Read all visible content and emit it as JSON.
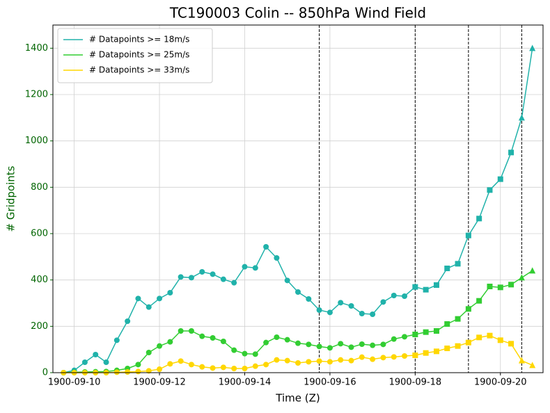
{
  "chart_data": {
    "type": "line",
    "title": "TC190003 Colin -- 850hPa Wind Field",
    "xlabel": "Time (Z)",
    "ylabel": "# Gridpoints",
    "y_axis_color": "#006400",
    "x": [
      "1900-09-09T18:00",
      "1900-09-10T00:00",
      "1900-09-10T06:00",
      "1900-09-10T12:00",
      "1900-09-10T18:00",
      "1900-09-11T00:00",
      "1900-09-11T06:00",
      "1900-09-11T12:00",
      "1900-09-11T18:00",
      "1900-09-12T00:00",
      "1900-09-12T06:00",
      "1900-09-12T12:00",
      "1900-09-12T18:00",
      "1900-09-13T00:00",
      "1900-09-13T06:00",
      "1900-09-13T12:00",
      "1900-09-13T18:00",
      "1900-09-14T00:00",
      "1900-09-14T06:00",
      "1900-09-14T12:00",
      "1900-09-14T18:00",
      "1900-09-15T00:00",
      "1900-09-15T06:00",
      "1900-09-15T12:00",
      "1900-09-15T18:00",
      "1900-09-16T00:00",
      "1900-09-16T06:00",
      "1900-09-16T12:00",
      "1900-09-16T18:00",
      "1900-09-17T00:00",
      "1900-09-17T06:00",
      "1900-09-17T12:00",
      "1900-09-17T18:00",
      "1900-09-18T00:00",
      "1900-09-18T06:00",
      "1900-09-18T12:00",
      "1900-09-18T18:00",
      "1900-09-19T00:00",
      "1900-09-19T06:00",
      "1900-09-19T12:00",
      "1900-09-19T18:00",
      "1900-09-20T00:00",
      "1900-09-20T06:00",
      "1900-09-20T12:00",
      "1900-09-20T18:00"
    ],
    "series": [
      {
        "name": "# Datapoints >= 18m/s",
        "color": "#20b2aa",
        "values": [
          0,
          10,
          45,
          78,
          45,
          140,
          222,
          320,
          283,
          320,
          345,
          413,
          410,
          435,
          425,
          403,
          388,
          457,
          452,
          543,
          495,
          398,
          348,
          318,
          270,
          260,
          302,
          288,
          255,
          252,
          305,
          333,
          330,
          370,
          358,
          378,
          450,
          470,
          592,
          665,
          788,
          835,
          950,
          1100,
          1400
        ]
      },
      {
        "name": "# Datapoints >= 25m/s",
        "color": "#32cd32",
        "values": [
          0,
          2,
          3,
          4,
          5,
          10,
          18,
          35,
          87,
          115,
          133,
          180,
          180,
          157,
          150,
          135,
          97,
          82,
          80,
          130,
          153,
          142,
          127,
          122,
          113,
          107,
          125,
          110,
          123,
          118,
          122,
          145,
          155,
          165,
          175,
          180,
          210,
          232,
          275,
          310,
          372,
          368,
          380,
          410,
          440
        ]
      },
      {
        "name": "# Datapoints >= 33m/s",
        "color": "#ffd700",
        "values": [
          0,
          0,
          0,
          0,
          0,
          2,
          3,
          5,
          8,
          15,
          38,
          50,
          35,
          25,
          20,
          23,
          18,
          18,
          28,
          35,
          55,
          52,
          42,
          47,
          50,
          47,
          55,
          52,
          67,
          58,
          65,
          68,
          72,
          75,
          85,
          92,
          105,
          115,
          130,
          152,
          160,
          140,
          125,
          52,
          32
        ]
      }
    ],
    "marker_changes": [
      {
        "x": "1900-09-09T18:00",
        "marker": "circle"
      },
      {
        "x": "1900-09-18T00:00",
        "marker": "square"
      },
      {
        "x": "1900-09-20T12:00",
        "marker": "triangle"
      }
    ],
    "vlines": [
      "1900-09-15T18:00",
      "1900-09-18T00:00",
      "1900-09-19T06:00",
      "1900-09-20T12:00"
    ],
    "xlim": [
      "1900-09-09T12:00",
      "1900-09-21T00:00"
    ],
    "xticks": [
      "1900-09-10",
      "1900-09-12",
      "1900-09-14",
      "1900-09-16",
      "1900-09-18",
      "1900-09-20"
    ],
    "ylim": [
      0,
      1500
    ],
    "yticks": [
      0,
      200,
      400,
      600,
      800,
      1000,
      1200,
      1400
    ],
    "grid": true,
    "legend": "upper left"
  }
}
